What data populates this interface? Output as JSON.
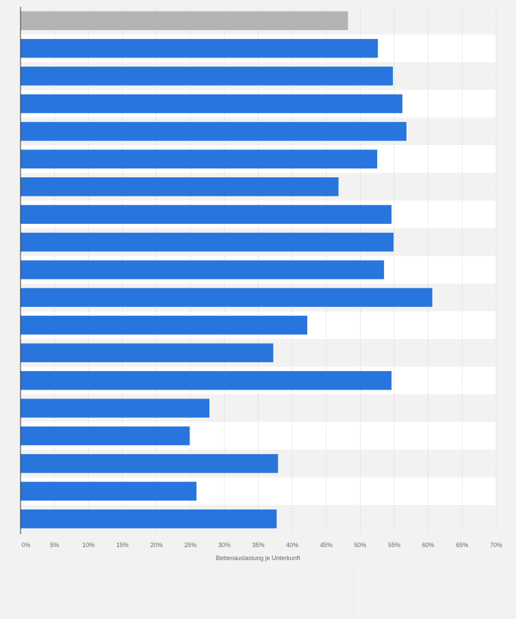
{
  "chart_data": {
    "type": "bar",
    "orientation": "horizontal",
    "title": "",
    "xlabel": "Bettenauslastung je Unterkunft",
    "ylabel": "",
    "xlim": [
      0,
      70
    ],
    "xticks": [
      0,
      5,
      10,
      15,
      20,
      25,
      30,
      35,
      40,
      45,
      50,
      55,
      60,
      65,
      70
    ],
    "tick_labels": [
      "0%",
      "5%",
      "10%",
      "15%",
      "20%",
      "25%",
      "30%",
      "35%",
      "40%",
      "45%",
      "50%",
      "55%",
      "60%",
      "65%",
      "70%"
    ],
    "values": [
      48.2,
      52.6,
      54.8,
      56.2,
      56.8,
      52.5,
      46.8,
      54.6,
      54.9,
      53.5,
      60.6,
      42.2,
      37.2,
      54.6,
      27.8,
      24.9,
      37.9,
      25.9,
      37.7
    ],
    "highlight_index": 0,
    "grid": true
  },
  "colors": {
    "bar": "#2876dd",
    "highlight_bar": "#b4b4b4",
    "band_light": "#f2f2f2",
    "band_dark": "#ffffff",
    "grid": "#cfcfcf",
    "axis": "#333333",
    "tick_text": "#666666"
  }
}
